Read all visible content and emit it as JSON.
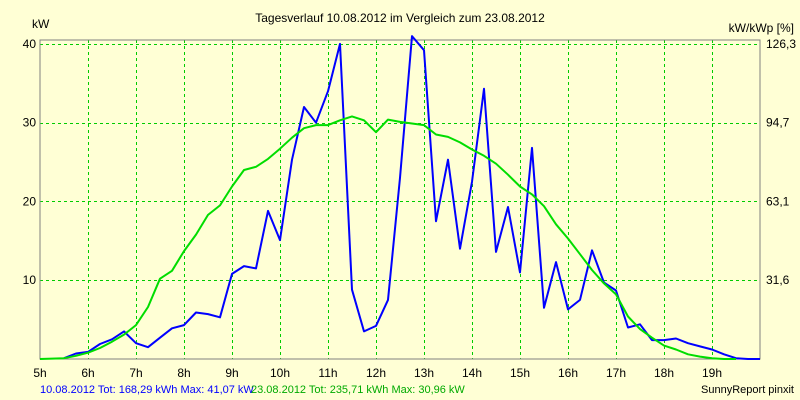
{
  "chart_data": {
    "type": "line",
    "title": "Tagesverlauf 10.08.2012 im Vergleich zum 23.08.2012",
    "ylabel_left": "kW",
    "ylabel_right": "kW/kWp [%]",
    "xlim": [
      5,
      20
    ],
    "ylim": [
      0,
      40.5
    ],
    "grid": true,
    "x_ticks": [
      5,
      6,
      7,
      8,
      9,
      10,
      11,
      12,
      13,
      14,
      15,
      16,
      17,
      18,
      19
    ],
    "x_tick_labels": [
      "5h",
      "6h",
      "7h",
      "8h",
      "9h",
      "10h",
      "11h",
      "12h",
      "13h",
      "14h",
      "15h",
      "16h",
      "17h",
      "18h",
      "19h"
    ],
    "y_ticks_left": [
      10,
      20,
      30,
      40
    ],
    "y_tick_labels_left": [
      "10",
      "20",
      "30",
      "40"
    ],
    "y_ticks_right": [
      10,
      20,
      30,
      40
    ],
    "y_tick_labels_right": [
      "31,6",
      "63,1",
      "94,7",
      "126,3"
    ],
    "series": [
      {
        "name": "10.08.2012",
        "color": "#0000ff",
        "x": [
          5.5,
          5.75,
          6.0,
          6.25,
          6.5,
          6.75,
          7.0,
          7.25,
          7.5,
          7.75,
          8.0,
          8.25,
          8.5,
          8.75,
          9.0,
          9.25,
          9.5,
          9.75,
          10.0,
          10.25,
          10.5,
          10.75,
          11.0,
          11.25,
          11.5,
          11.75,
          12.0,
          12.25,
          12.5,
          12.75,
          13.0,
          13.25,
          13.5,
          13.75,
          14.0,
          14.25,
          14.5,
          14.75,
          15.0,
          15.25,
          15.5,
          15.75,
          16.0,
          16.25,
          16.5,
          16.75,
          17.0,
          17.25,
          17.5,
          17.75,
          18.0,
          18.25,
          18.5,
          18.75,
          19.0,
          19.25,
          19.5,
          19.75,
          20.0
        ],
        "y": [
          0.1,
          0.7,
          0.9,
          1.9,
          2.5,
          3.5,
          2.0,
          1.5,
          2.7,
          3.9,
          4.3,
          5.9,
          5.7,
          5.3,
          10.8,
          11.8,
          11.5,
          18.8,
          15.1,
          25.3,
          32.0,
          30.0,
          34.0,
          40.0,
          8.8,
          3.5,
          4.2,
          7.5,
          23.0,
          41.0,
          39.2,
          17.5,
          25.3,
          14.0,
          22.5,
          34.3,
          13.6,
          19.3,
          11.0,
          26.8,
          6.5,
          12.3,
          6.3,
          7.5,
          13.8,
          9.7,
          8.7,
          4.0,
          4.4,
          2.4,
          2.4,
          2.6,
          2.0,
          1.6,
          1.2,
          0.6,
          0.1,
          0.0,
          0.0
        ]
      },
      {
        "name": "23.08.2012",
        "color": "#00dd00",
        "x": [
          5.0,
          5.5,
          5.75,
          6.0,
          6.25,
          6.5,
          6.75,
          7.0,
          7.25,
          7.5,
          7.75,
          8.0,
          8.25,
          8.5,
          8.75,
          9.0,
          9.25,
          9.5,
          9.75,
          10.0,
          10.25,
          10.5,
          10.75,
          11.0,
          11.25,
          11.5,
          11.75,
          12.0,
          12.25,
          12.5,
          12.75,
          13.0,
          13.25,
          13.5,
          13.75,
          14.0,
          14.25,
          14.5,
          14.75,
          15.0,
          15.25,
          15.5,
          15.75,
          16.0,
          16.25,
          16.5,
          16.75,
          17.0,
          17.25,
          17.5,
          17.75,
          18.0,
          18.25,
          18.5,
          18.75,
          19.0,
          19.25,
          19.5
        ],
        "y": [
          0.0,
          0.1,
          0.4,
          0.8,
          1.4,
          2.2,
          3.1,
          4.3,
          6.6,
          10.2,
          11.2,
          13.7,
          15.8,
          18.3,
          19.5,
          21.9,
          24.0,
          24.4,
          25.4,
          26.7,
          28.1,
          29.3,
          29.7,
          29.7,
          30.3,
          30.8,
          30.3,
          28.8,
          30.4,
          30.1,
          29.9,
          29.7,
          28.5,
          28.2,
          27.5,
          26.6,
          25.8,
          24.8,
          23.4,
          21.9,
          20.9,
          19.4,
          17.1,
          15.3,
          13.3,
          11.3,
          9.6,
          8.2,
          5.4,
          3.8,
          2.7,
          1.7,
          1.2,
          0.6,
          0.3,
          0.1,
          0.0,
          0.0
        ]
      }
    ]
  },
  "footer": {
    "blue_text": "10.08.2012 Tot: 168,29 kWh Max: 41,07 kW",
    "green_text": "23.08.2012 Tot: 235,71 kWh Max: 30,96 kW",
    "credit": "SunnyReport pinxit"
  }
}
